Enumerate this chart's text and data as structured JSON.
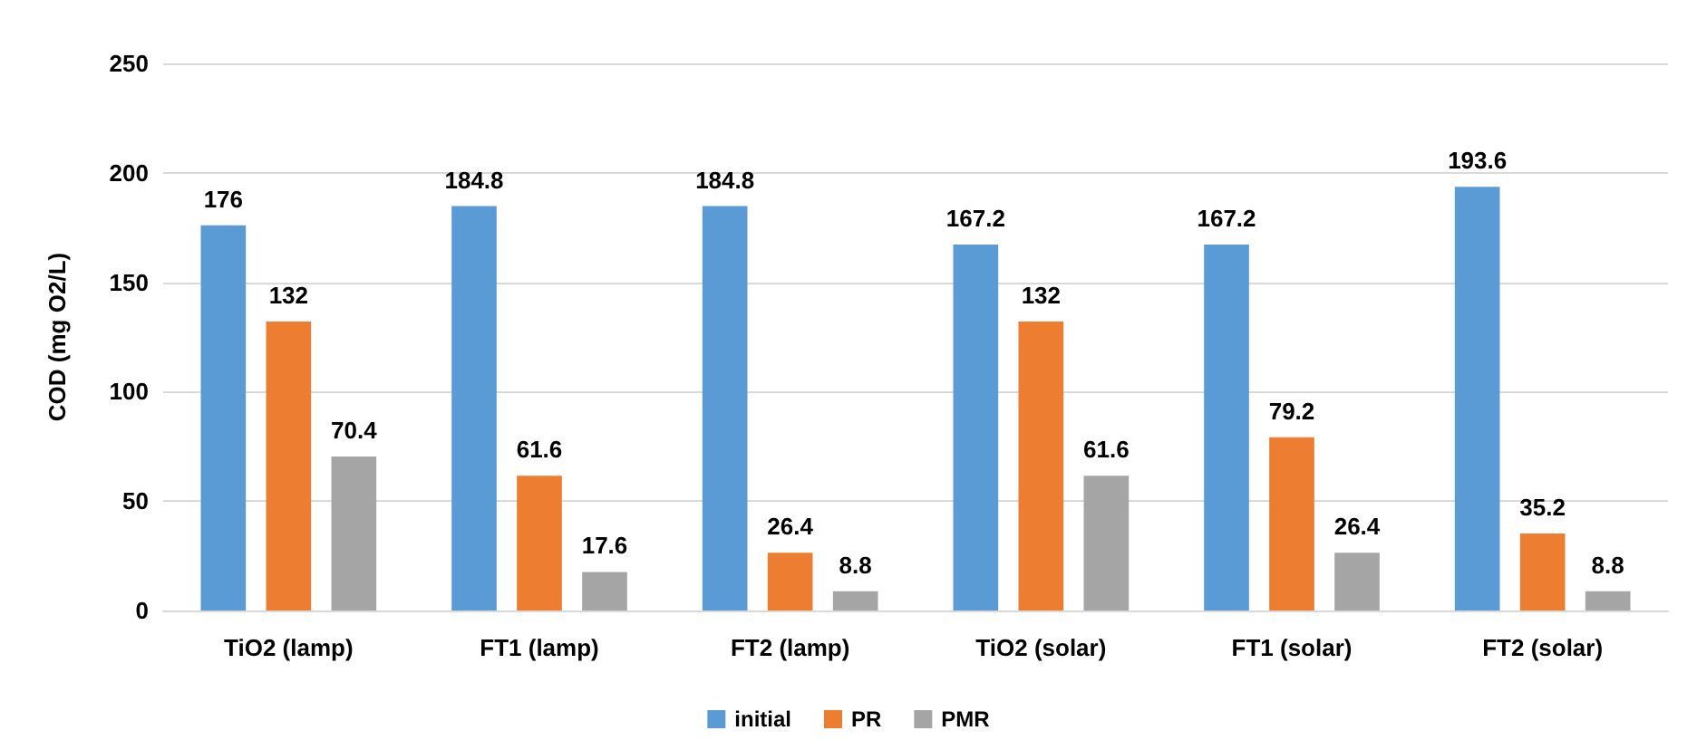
{
  "chart_data": {
    "type": "bar",
    "ylabel": "COD (mg O2/L)",
    "categories": [
      "TiO2 (lamp)",
      "FT1 (lamp)",
      "FT2 (lamp)",
      "TiO2 (solar)",
      "FT1 (solar)",
      "FT2 (solar)"
    ],
    "series": [
      {
        "name": "initial",
        "color": "#5b9bd5",
        "values": [
          176,
          184.8,
          184.8,
          167.2,
          167.2,
          193.6
        ]
      },
      {
        "name": "PR",
        "color": "#ed7d31",
        "values": [
          132,
          61.6,
          26.4,
          132,
          79.2,
          35.2
        ]
      },
      {
        "name": "PMR",
        "color": "#a5a5a5",
        "values": [
          70.4,
          17.6,
          8.8,
          61.6,
          26.4,
          8.8
        ]
      }
    ],
    "ylim": [
      0,
      250
    ],
    "yticks": [
      0,
      50,
      100,
      150,
      200,
      250
    ],
    "grid": "y",
    "legend": "bottom",
    "data_labels": true
  }
}
